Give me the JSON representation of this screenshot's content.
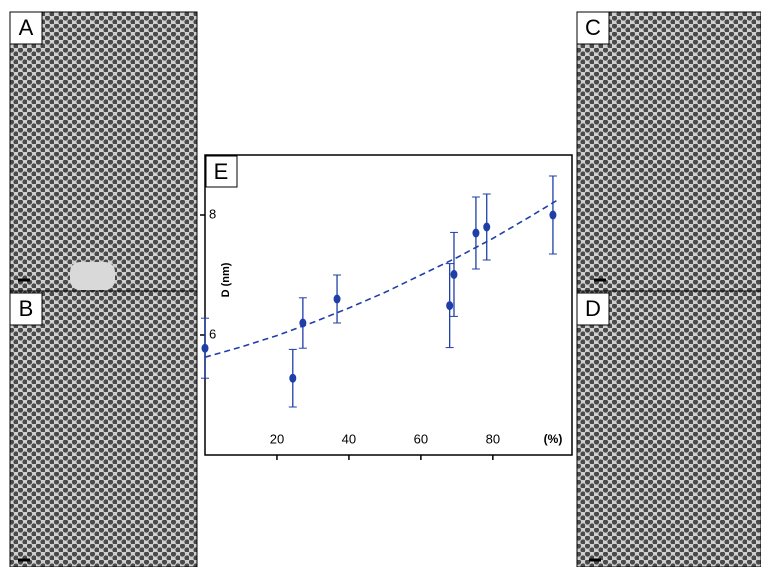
{
  "panels": [
    "A",
    "B",
    "C",
    "D"
  ],
  "chart_data": {
    "type": "scatter",
    "title": "E",
    "xlabel": "(%)",
    "ylabel": "D (nm)",
    "xlim": [
      0,
      102
    ],
    "ylim": [
      4,
      9
    ],
    "xticks": [
      20,
      40,
      60,
      80
    ],
    "yticks": [
      6,
      8
    ],
    "series": [
      {
        "color": "#1f3fa8",
        "x": [
          0,
          24.4,
          27.2,
          36.7,
          68,
          69.2,
          75.3,
          78.3,
          96.7
        ],
        "values": [
          5.78,
          5.28,
          6.2,
          6.6,
          6.49,
          7.01,
          7.7,
          7.8,
          8.0
        ],
        "errors": [
          0.5,
          0.48,
          0.42,
          0.4,
          0.7,
          0.7,
          0.6,
          0.55,
          0.65
        ]
      },
      {
        "color": "#1f3fa8",
        "style": "dashed",
        "x": [
          0,
          10,
          20,
          30,
          40,
          50,
          60,
          70,
          80,
          90,
          98
        ],
        "values": [
          5.63,
          5.8,
          5.99,
          6.21,
          6.45,
          6.71,
          7.0,
          7.29,
          7.61,
          7.96,
          8.25
        ]
      }
    ]
  }
}
